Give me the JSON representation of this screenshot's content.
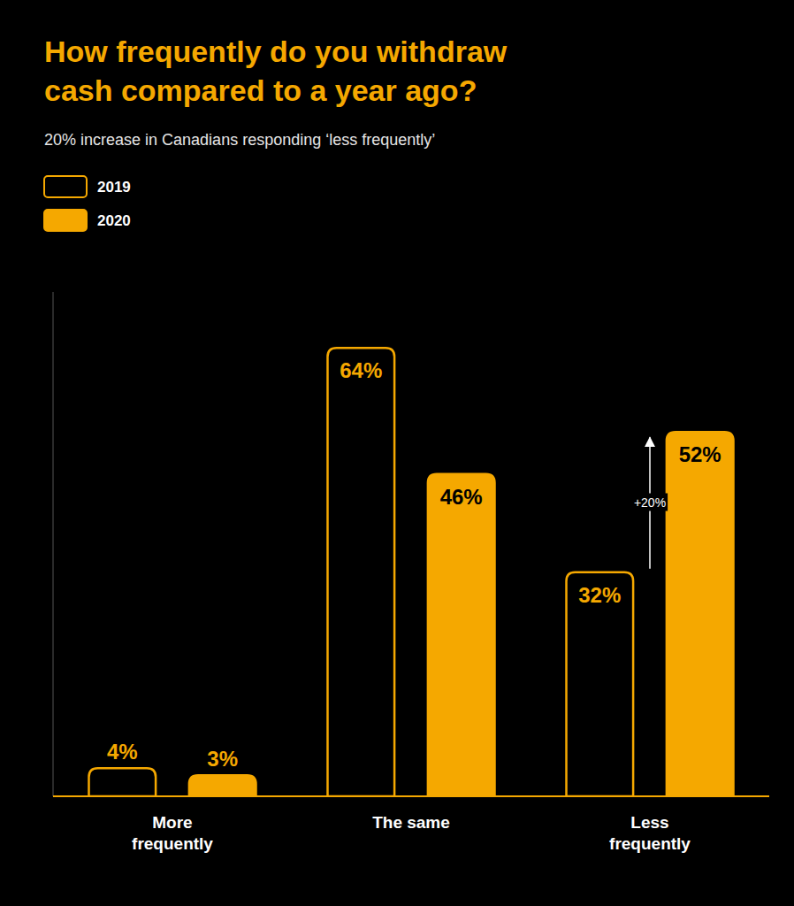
{
  "chart_data": {
    "type": "bar",
    "title": "How frequently do you withdraw\ncash compared to a year ago?",
    "subtitle": "20% increase in Canadians responding ‘less frequently’",
    "color": "#F5A800",
    "categories": [
      "More\nfrequently",
      "The same",
      "Less\nfrequently"
    ],
    "series": [
      {
        "name": "2019",
        "color": "#000000",
        "values": [
          4,
          64,
          32
        ],
        "value_labels": [
          "4%",
          "64%",
          "32%"
        ]
      },
      {
        "name": "2020",
        "color": "#F5A800",
        "values": [
          3,
          46,
          52
        ],
        "value_labels": [
          "3%",
          "46%",
          "52%"
        ]
      }
    ],
    "ylim": [
      0,
      72
    ],
    "grid": false,
    "legend": "top-left",
    "data_labels": true,
    "tick_labels": "x",
    "annotations": [
      {
        "text": "+20%",
        "category": "Less\nfrequently",
        "from": 32,
        "to": 52
      }
    ]
  }
}
